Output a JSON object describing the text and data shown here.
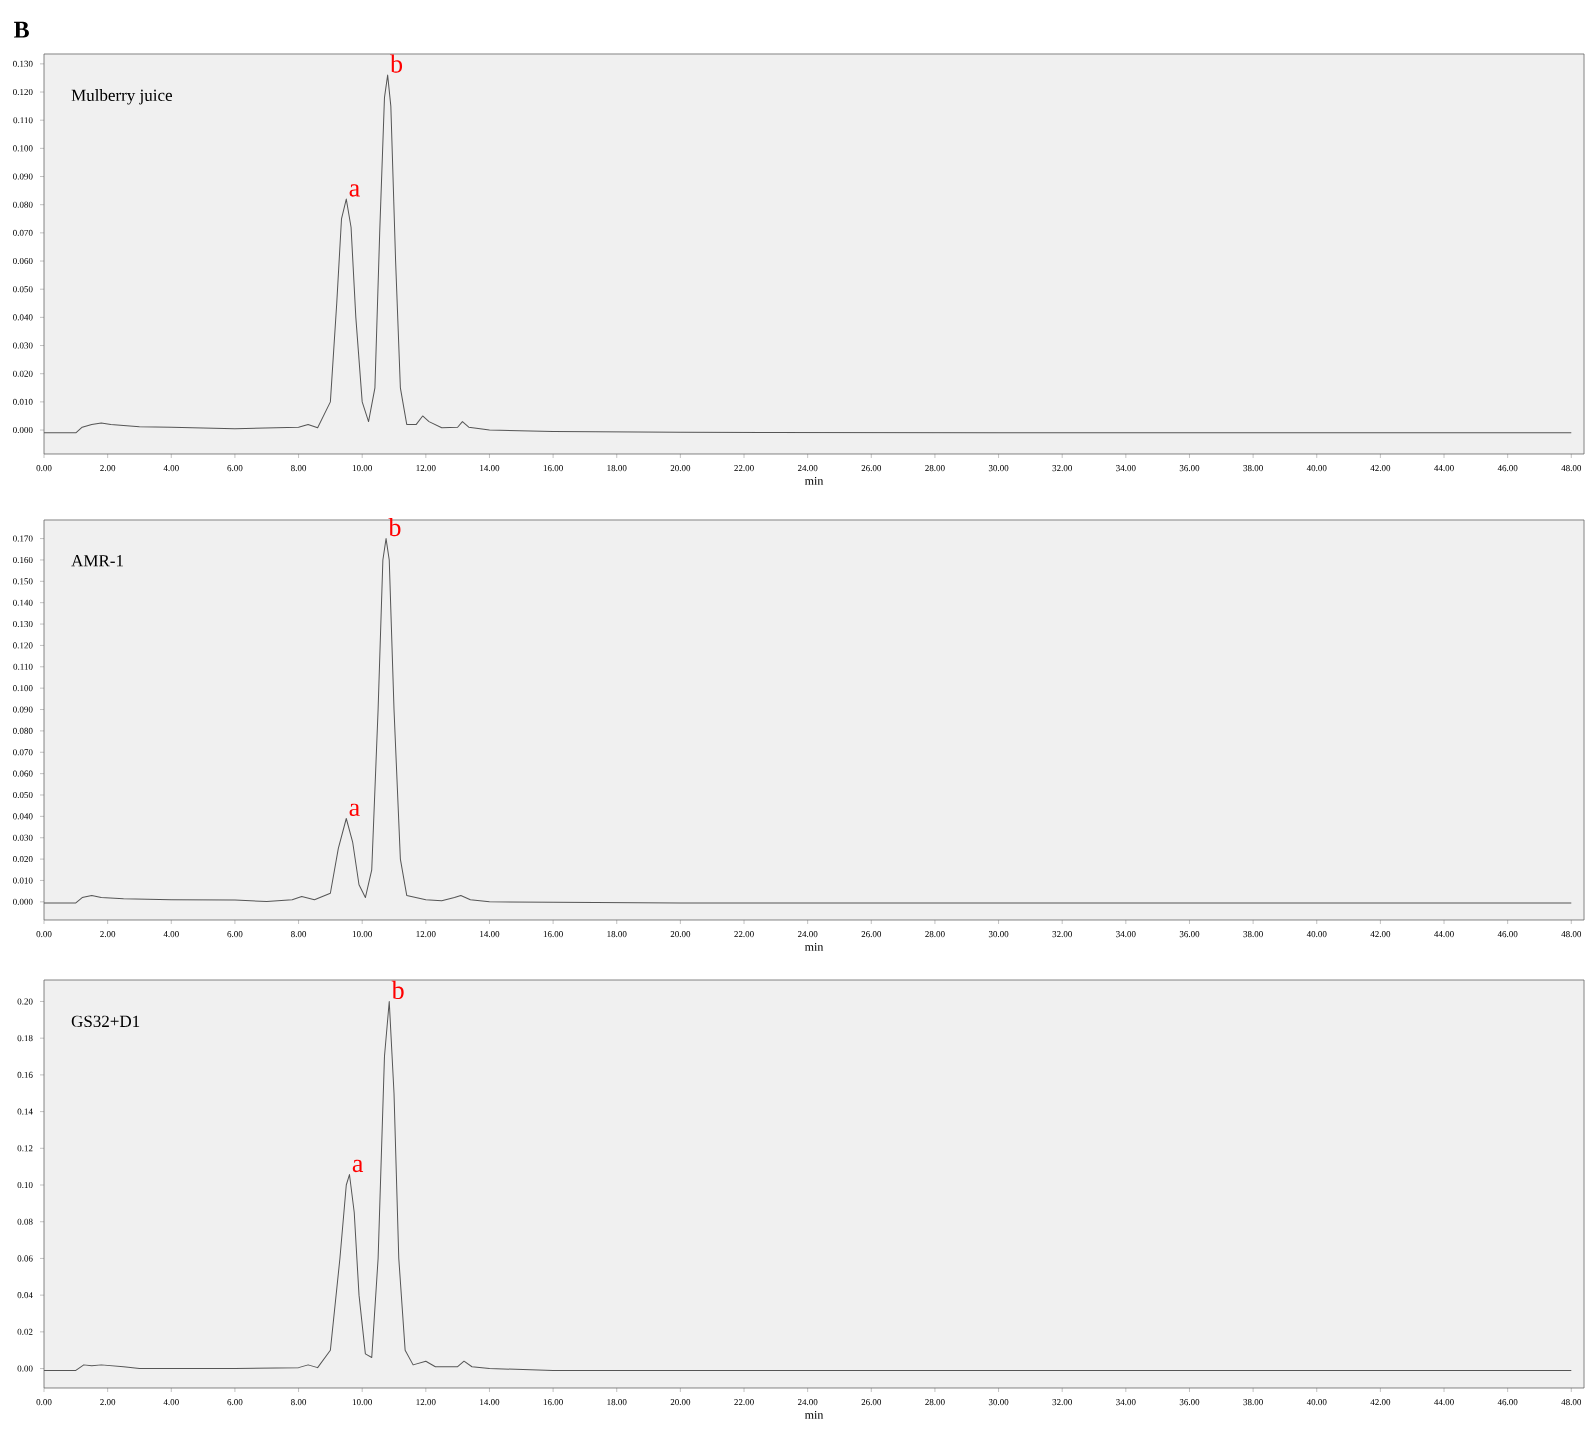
{
  "chart_data": [
    {
      "type": "line",
      "title": "Mulberry juice",
      "xlabel": "min",
      "xlim": [
        0,
        48.4
      ],
      "ylim": [
        -0.0085,
        0.1335
      ],
      "xticks": [
        {
          "value": 0,
          "label": "0.00"
        },
        {
          "value": 2,
          "label": "2.00"
        },
        {
          "value": 4,
          "label": "4.00"
        },
        {
          "value": 6,
          "label": "6.00"
        },
        {
          "value": 8,
          "label": "8.00"
        },
        {
          "value": 10,
          "label": "10.00"
        },
        {
          "value": 12,
          "label": "12.00"
        },
        {
          "value": 14,
          "label": "14.00"
        },
        {
          "value": 16,
          "label": "16.00"
        },
        {
          "value": 18,
          "label": "18.00"
        },
        {
          "value": 20,
          "label": "20.00"
        },
        {
          "value": 22,
          "label": "22.00"
        },
        {
          "value": 24,
          "label": "24.00"
        },
        {
          "value": 26,
          "label": "26.00"
        },
        {
          "value": 28,
          "label": "28.00"
        },
        {
          "value": 30,
          "label": "30.00"
        },
        {
          "value": 32,
          "label": "32.00"
        },
        {
          "value": 34,
          "label": "34.00"
        },
        {
          "value": 36,
          "label": "36.00"
        },
        {
          "value": 38,
          "label": "38.00"
        },
        {
          "value": 40,
          "label": "40.00"
        },
        {
          "value": 42,
          "label": "42.00"
        },
        {
          "value": 44,
          "label": "44.00"
        },
        {
          "value": 46,
          "label": "46.00"
        },
        {
          "value": 48,
          "label": "48.00"
        }
      ],
      "yticks": [
        {
          "value": 0,
          "label": "0.000"
        },
        {
          "value": 0.01,
          "label": "0.010"
        },
        {
          "value": 0.02,
          "label": "0.020"
        },
        {
          "value": 0.03,
          "label": "0.030"
        },
        {
          "value": 0.04,
          "label": "0.040"
        },
        {
          "value": 0.05,
          "label": "0.050"
        },
        {
          "value": 0.06,
          "label": "0.060"
        },
        {
          "value": 0.07,
          "label": "0.070"
        },
        {
          "value": 0.08,
          "label": "0.080"
        },
        {
          "value": 0.09,
          "label": "0.090"
        },
        {
          "value": 0.1,
          "label": "0.100"
        },
        {
          "value": 0.11,
          "label": "0.110"
        },
        {
          "value": 0.12,
          "label": "0.120"
        },
        {
          "value": 0.13,
          "label": "0.130"
        }
      ],
      "annotations": [
        "B",
        {
          "text": "a",
          "x": 9.5,
          "y": 0.082
        },
        {
          "text": "b",
          "x": 10.8,
          "y": 0.126
        }
      ],
      "series": [
        {
          "color": "#555555",
          "x": [
            0,
            1.0,
            1.2,
            1.5,
            1.8,
            2.1,
            3,
            4,
            6,
            8,
            8.3,
            8.6,
            9.0,
            9.2,
            9.35,
            9.5,
            9.65,
            9.8,
            10.0,
            10.2,
            10.4,
            10.55,
            10.7,
            10.8,
            10.9,
            11.05,
            11.2,
            11.4,
            11.7,
            11.9,
            12.1,
            12.5,
            13.0,
            13.15,
            13.35,
            14,
            16,
            20,
            30,
            40,
            48
          ],
          "values": [
            -0.001,
            -0.001,
            0.001,
            0.002,
            0.0025,
            0.002,
            0.0012,
            0.001,
            0.0005,
            0.001,
            0.002,
            0.0008,
            0.01,
            0.045,
            0.075,
            0.082,
            0.072,
            0.04,
            0.01,
            0.003,
            0.015,
            0.07,
            0.118,
            0.126,
            0.115,
            0.06,
            0.015,
            0.002,
            0.002,
            0.005,
            0.003,
            0.0008,
            0.001,
            0.003,
            0.001,
            0.0,
            -0.0005,
            -0.0008,
            -0.001,
            -0.001,
            -0.001
          ]
        }
      ]
    },
    {
      "type": "line",
      "title": "AMR-1",
      "xlabel": "min",
      "xlim": [
        0,
        48.4
      ],
      "ylim": [
        -0.0085,
        0.1787
      ],
      "xticks": [
        {
          "value": 0,
          "label": "0.00"
        },
        {
          "value": 2,
          "label": "2.00"
        },
        {
          "value": 4,
          "label": "4.00"
        },
        {
          "value": 6,
          "label": "6.00"
        },
        {
          "value": 8,
          "label": "8.00"
        },
        {
          "value": 10,
          "label": "10.00"
        },
        {
          "value": 12,
          "label": "12.00"
        },
        {
          "value": 14,
          "label": "14.00"
        },
        {
          "value": 16,
          "label": "16.00"
        },
        {
          "value": 18,
          "label": "18.00"
        },
        {
          "value": 20,
          "label": "20.00"
        },
        {
          "value": 22,
          "label": "22.00"
        },
        {
          "value": 24,
          "label": "24.00"
        },
        {
          "value": 26,
          "label": "26.00"
        },
        {
          "value": 28,
          "label": "28.00"
        },
        {
          "value": 30,
          "label": "30.00"
        },
        {
          "value": 32,
          "label": "32.00"
        },
        {
          "value": 34,
          "label": "34.00"
        },
        {
          "value": 36,
          "label": "36.00"
        },
        {
          "value": 38,
          "label": "38.00"
        },
        {
          "value": 40,
          "label": "40.00"
        },
        {
          "value": 42,
          "label": "42.00"
        },
        {
          "value": 44,
          "label": "44.00"
        },
        {
          "value": 46,
          "label": "46.00"
        },
        {
          "value": 48,
          "label": "48.00"
        }
      ],
      "yticks": [
        {
          "value": 0,
          "label": "0.000"
        },
        {
          "value": 0.01,
          "label": "0.010"
        },
        {
          "value": 0.02,
          "label": "0.020"
        },
        {
          "value": 0.03,
          "label": "0.030"
        },
        {
          "value": 0.04,
          "label": "0.040"
        },
        {
          "value": 0.05,
          "label": "0.050"
        },
        {
          "value": 0.06,
          "label": "0.060"
        },
        {
          "value": 0.07,
          "label": "0.070"
        },
        {
          "value": 0.08,
          "label": "0.080"
        },
        {
          "value": 0.09,
          "label": "0.090"
        },
        {
          "value": 0.1,
          "label": "0.100"
        },
        {
          "value": 0.11,
          "label": "0.110"
        },
        {
          "value": 0.12,
          "label": "0.120"
        },
        {
          "value": 0.13,
          "label": "0.130"
        },
        {
          "value": 0.14,
          "label": "0.140"
        },
        {
          "value": 0.15,
          "label": "0.150"
        },
        {
          "value": 0.16,
          "label": "0.160"
        },
        {
          "value": 0.17,
          "label": "0.170"
        }
      ],
      "annotations": [
        {
          "text": "a",
          "x": 9.5,
          "y": 0.039
        },
        {
          "text": "b",
          "x": 10.75,
          "y": 0.17
        }
      ],
      "series": [
        {
          "color": "#555555",
          "x": [
            0,
            1.0,
            1.2,
            1.5,
            1.8,
            2.5,
            4,
            6,
            7,
            7.8,
            8.1,
            8.5,
            9.0,
            9.25,
            9.5,
            9.7,
            9.9,
            10.1,
            10.3,
            10.5,
            10.65,
            10.75,
            10.85,
            11.0,
            11.2,
            11.4,
            12.0,
            12.5,
            12.9,
            13.1,
            13.4,
            14,
            16,
            20,
            30,
            40,
            48
          ],
          "values": [
            -0.0005,
            -0.0005,
            0.002,
            0.003,
            0.002,
            0.0015,
            0.001,
            0.0008,
            0.0002,
            0.001,
            0.0025,
            0.001,
            0.004,
            0.025,
            0.039,
            0.028,
            0.008,
            0.002,
            0.015,
            0.09,
            0.16,
            0.17,
            0.16,
            0.09,
            0.02,
            0.003,
            0.001,
            0.0005,
            0.002,
            0.003,
            0.001,
            0.0,
            -0.0002,
            -0.0005,
            -0.0005,
            -0.0006,
            -0.0005
          ]
        }
      ]
    },
    {
      "type": "line",
      "title": "GS32+D1",
      "xlabel": "min",
      "xlim": [
        0,
        48.4
      ],
      "ylim": [
        -0.0106,
        0.2117
      ],
      "xticks": [
        {
          "value": 0,
          "label": "0.00"
        },
        {
          "value": 2,
          "label": "2.00"
        },
        {
          "value": 4,
          "label": "4.00"
        },
        {
          "value": 6,
          "label": "6.00"
        },
        {
          "value": 8,
          "label": "8.00"
        },
        {
          "value": 10,
          "label": "10.00"
        },
        {
          "value": 12,
          "label": "12.00"
        },
        {
          "value": 14,
          "label": "14.00"
        },
        {
          "value": 16,
          "label": "16.00"
        },
        {
          "value": 18,
          "label": "18.00"
        },
        {
          "value": 20,
          "label": "20.00"
        },
        {
          "value": 22,
          "label": "22.00"
        },
        {
          "value": 24,
          "label": "24.00"
        },
        {
          "value": 26,
          "label": "26.00"
        },
        {
          "value": 28,
          "label": "28.00"
        },
        {
          "value": 30,
          "label": "30.00"
        },
        {
          "value": 32,
          "label": "32.00"
        },
        {
          "value": 34,
          "label": "34.00"
        },
        {
          "value": 36,
          "label": "36.00"
        },
        {
          "value": 38,
          "label": "38.00"
        },
        {
          "value": 40,
          "label": "40.00"
        },
        {
          "value": 42,
          "label": "42.00"
        },
        {
          "value": 44,
          "label": "44.00"
        },
        {
          "value": 46,
          "label": "46.00"
        },
        {
          "value": 48,
          "label": "48.00"
        }
      ],
      "yticks": [
        {
          "value": 0,
          "label": "0.00"
        },
        {
          "value": 0.02,
          "label": "0.02"
        },
        {
          "value": 0.04,
          "label": "0.04"
        },
        {
          "value": 0.06,
          "label": "0.06"
        },
        {
          "value": 0.08,
          "label": "0.08"
        },
        {
          "value": 0.1,
          "label": "0.10"
        },
        {
          "value": 0.12,
          "label": "0.12"
        },
        {
          "value": 0.14,
          "label": "0.14"
        },
        {
          "value": 0.16,
          "label": "0.16"
        },
        {
          "value": 0.18,
          "label": "0.18"
        },
        {
          "value": 0.2,
          "label": "0.20"
        }
      ],
      "annotations": [
        {
          "text": "a",
          "x": 9.6,
          "y": 0.1057
        },
        {
          "text": "b",
          "x": 10.85,
          "y": 0.2
        }
      ],
      "series": [
        {
          "color": "#555555",
          "x": [
            0,
            1.0,
            1.25,
            1.5,
            1.8,
            2.5,
            3,
            6,
            8,
            8.3,
            8.6,
            9.0,
            9.3,
            9.5,
            9.6,
            9.75,
            9.9,
            10.1,
            10.3,
            10.5,
            10.7,
            10.85,
            11.0,
            11.15,
            11.35,
            11.6,
            12.0,
            12.3,
            13.0,
            13.2,
            13.45,
            14,
            16,
            20,
            30,
            40,
            48
          ],
          "values": [
            -0.001,
            -0.001,
            0.002,
            0.0015,
            0.002,
            0.001,
            0.0,
            0.0,
            0.0005,
            0.002,
            0.0005,
            0.01,
            0.06,
            0.1,
            0.1057,
            0.085,
            0.04,
            0.008,
            0.006,
            0.06,
            0.17,
            0.2,
            0.15,
            0.06,
            0.01,
            0.002,
            0.004,
            0.001,
            0.001,
            0.004,
            0.001,
            0.0,
            -0.001,
            -0.001,
            -0.001,
            -0.001,
            -0.001
          ]
        }
      ]
    }
  ]
}
